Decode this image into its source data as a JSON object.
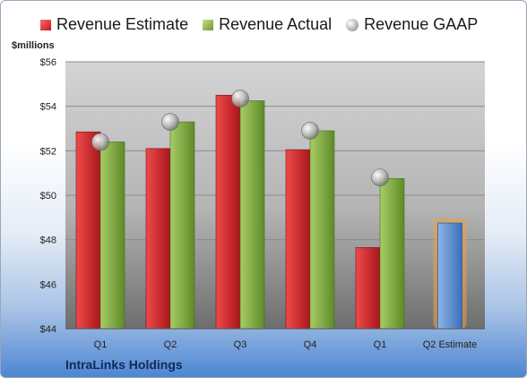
{
  "legend": {
    "estimate": "Revenue Estimate",
    "actual": "Revenue Actual",
    "gaap": "Revenue GAAP"
  },
  "unit_label": "$millions",
  "company": "IntraLinks Holdings",
  "colors": {
    "estimate": "#d42a2a",
    "actual": "#8db64a",
    "gaap": "#b9b9b9",
    "estimate_projection": "#5b8fd4",
    "projection_glow": "#f0a040"
  },
  "chart_data": {
    "type": "bar",
    "categories": [
      "Q1",
      "Q2",
      "Q3",
      "Q4",
      "Q1",
      "Q2 Estimate"
    ],
    "series": [
      {
        "name": "Revenue Estimate",
        "values": [
          52.85,
          52.1,
          54.5,
          52.05,
          47.65,
          48.75
        ]
      },
      {
        "name": "Revenue Actual",
        "values": [
          52.4,
          53.3,
          54.25,
          52.9,
          50.75,
          null
        ]
      },
      {
        "name": "Revenue GAAP",
        "values": [
          52.4,
          53.3,
          54.35,
          52.9,
          50.8,
          null
        ]
      }
    ],
    "ylim": [
      44,
      56
    ],
    "yticks": [
      "$44",
      "$46",
      "$48",
      "$50",
      "$52",
      "$54",
      "$56"
    ],
    "ylabel": "$millions",
    "grid": true,
    "legend": "top"
  }
}
